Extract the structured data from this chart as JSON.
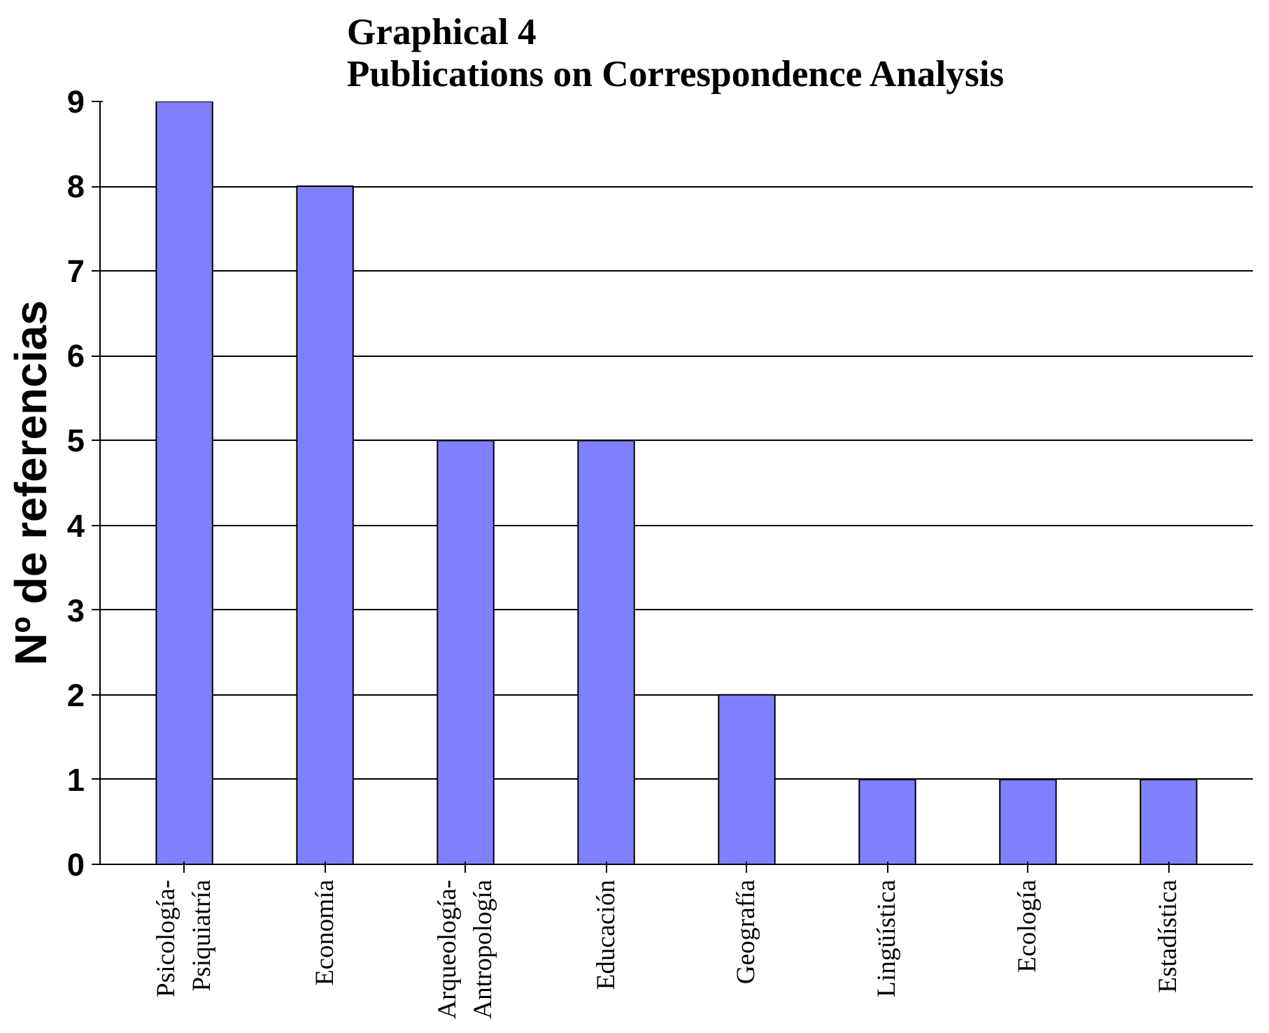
{
  "chart_data": {
    "type": "bar",
    "title": "Graphical 4\nPublications on Correspondence Analysis",
    "ylabel": "Nº de referencias",
    "categories": [
      "Psicología-\nPsiquiatría",
      "Economía",
      "Arqueología-\nAntropología",
      "Educación",
      "Geografía",
      "Lingüística",
      "Ecología",
      "Estadística"
    ],
    "values": [
      9,
      8,
      5,
      5,
      2,
      1,
      1,
      1
    ],
    "color": "#8080ff",
    "ylim": [
      0,
      9
    ],
    "yticks": [
      0,
      1,
      2,
      3,
      4,
      5,
      6,
      7,
      8,
      9
    ],
    "grid": "y"
  }
}
